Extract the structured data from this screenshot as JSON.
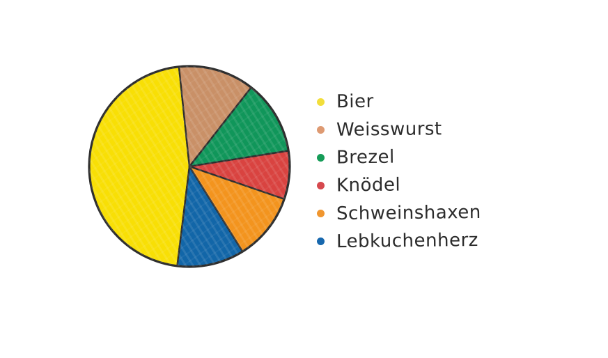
{
  "canvas": {
    "background": "#ffffff"
  },
  "chart_data": {
    "type": "pie",
    "title": "",
    "legend_position": "right",
    "start_angle_deg": 187,
    "clockwise": true,
    "outline_color": "#2e2e2e",
    "slices": [
      {
        "label": "Bier",
        "color": "#F8DF05",
        "dot_color": "#F2DE3B",
        "percent": 46.4,
        "angle_deg": 167
      },
      {
        "label": "Weisswurst",
        "color": "#C99067",
        "dot_color": "#DE9A72",
        "percent": 12.2,
        "angle_deg": 44
      },
      {
        "label": "Brezel",
        "color": "#10965A",
        "dot_color": "#169C58",
        "percent": 11.9,
        "angle_deg": 43
      },
      {
        "label": "Knödel",
        "color": "#D94340",
        "dot_color": "#D6494E",
        "percent": 7.8,
        "angle_deg": 28
      },
      {
        "label": "Schweinshaxen",
        "color": "#F3941E",
        "dot_color": "#F0962F",
        "percent": 10.8,
        "angle_deg": 39
      },
      {
        "label": "Lebkuchenherz",
        "color": "#1266A8",
        "dot_color": "#1768AE",
        "percent": 10.8,
        "angle_deg": 39
      }
    ]
  }
}
